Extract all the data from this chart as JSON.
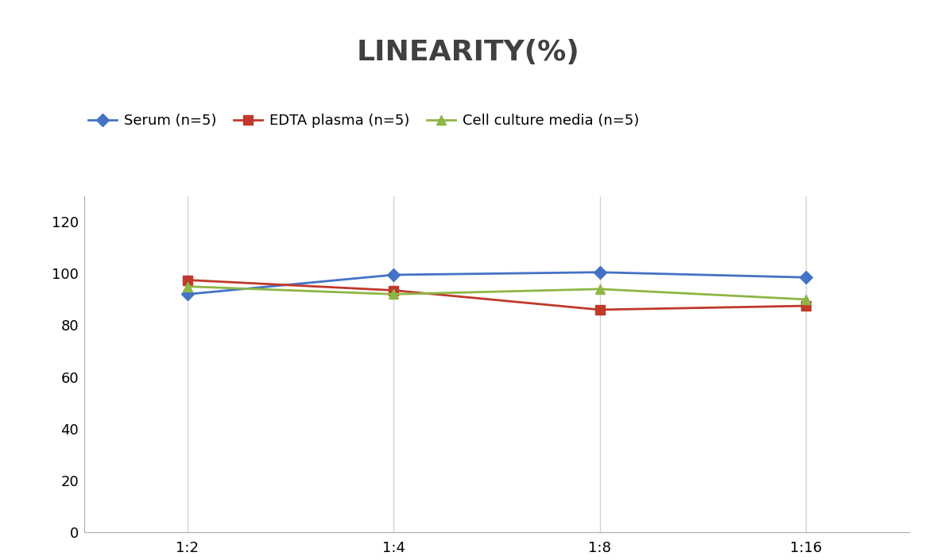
{
  "title": "LINEARITY(%)",
  "x_labels": [
    "1:2",
    "1:4",
    "1:8",
    "1:16"
  ],
  "x_positions": [
    0,
    1,
    2,
    3
  ],
  "series": [
    {
      "name": "Serum (n=5)",
      "values": [
        92,
        99.5,
        100.5,
        98.5
      ],
      "color": "#4472C4",
      "marker": "D",
      "markersize": 8,
      "linewidth": 2
    },
    {
      "name": "EDTA plasma (n=5)",
      "values": [
        97.5,
        93.5,
        86,
        87.5
      ],
      "color": "#C0392B",
      "marker": "s",
      "markersize": 8,
      "linewidth": 2
    },
    {
      "name": "Cell culture media (n=5)",
      "values": [
        95,
        92,
        94,
        90
      ],
      "color": "#8DB645",
      "marker": "^",
      "markersize": 8,
      "linewidth": 2
    }
  ],
  "ylim": [
    0,
    130
  ],
  "yticks": [
    0,
    20,
    40,
    60,
    80,
    100,
    120
  ],
  "grid_color": "#D3D3D3",
  "background_color": "#FFFFFF",
  "title_fontsize": 26,
  "title_fontweight": "bold",
  "legend_fontsize": 13,
  "tick_fontsize": 13
}
